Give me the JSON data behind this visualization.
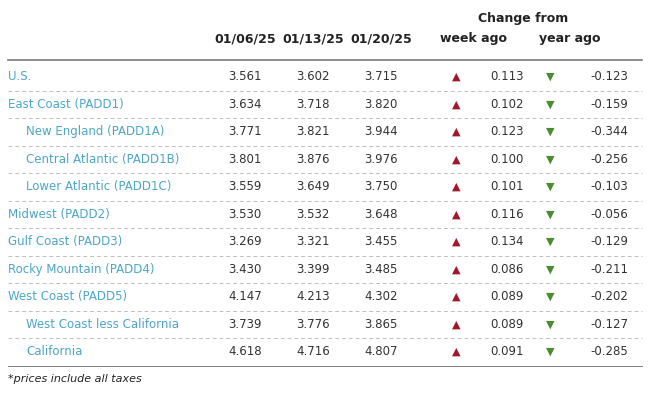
{
  "title_change_from": "Change from",
  "col_headers": [
    "01/06/25",
    "01/13/25",
    "01/20/25",
    "week ago",
    "year ago"
  ],
  "footnote": "*prices include all taxes",
  "rows": [
    {
      "label": "U.S.",
      "indent": 0,
      "v1": "3.561",
      "v2": "3.602",
      "v3": "3.715",
      "w_val": "0.113",
      "y_val": "-0.123"
    },
    {
      "label": "East Coast (PADD1)",
      "indent": 0,
      "v1": "3.634",
      "v2": "3.718",
      "v3": "3.820",
      "w_val": "0.102",
      "y_val": "-0.159"
    },
    {
      "label": "New England (PADD1A)",
      "indent": 1,
      "v1": "3.771",
      "v2": "3.821",
      "v3": "3.944",
      "w_val": "0.123",
      "y_val": "-0.344"
    },
    {
      "label": "Central Atlantic (PADD1B)",
      "indent": 1,
      "v1": "3.801",
      "v2": "3.876",
      "v3": "3.976",
      "w_val": "0.100",
      "y_val": "-0.256"
    },
    {
      "label": "Lower Atlantic (PADD1C)",
      "indent": 1,
      "v1": "3.559",
      "v2": "3.649",
      "v3": "3.750",
      "w_val": "0.101",
      "y_val": "-0.103"
    },
    {
      "label": "Midwest (PADD2)",
      "indent": 0,
      "v1": "3.530",
      "v2": "3.532",
      "v3": "3.648",
      "w_val": "0.116",
      "y_val": "-0.056"
    },
    {
      "label": "Gulf Coast (PADD3)",
      "indent": 0,
      "v1": "3.269",
      "v2": "3.321",
      "v3": "3.455",
      "w_val": "0.134",
      "y_val": "-0.129"
    },
    {
      "label": "Rocky Mountain (PADD4)",
      "indent": 0,
      "v1": "3.430",
      "v2": "3.399",
      "v3": "3.485",
      "w_val": "0.086",
      "y_val": "-0.211"
    },
    {
      "label": "West Coast (PADD5)",
      "indent": 0,
      "v1": "4.147",
      "v2": "4.213",
      "v3": "4.302",
      "w_val": "0.089",
      "y_val": "-0.202"
    },
    {
      "label": "West Coast less California",
      "indent": 1,
      "v1": "3.739",
      "v2": "3.776",
      "v3": "3.865",
      "w_val": "0.089",
      "y_val": "-0.127"
    },
    {
      "label": "California",
      "indent": 1,
      "v1": "4.618",
      "v2": "4.716",
      "v3": "4.807",
      "w_val": "0.091",
      "y_val": "-0.285"
    }
  ],
  "label_color": "#4da6c8",
  "up_arrow_color": "#a0182a",
  "down_arrow_color": "#4a8c30",
  "header_color": "#222222",
  "data_color": "#333333",
  "line_color_dash": "#c0c0c0",
  "line_color_solid": "#7a7a7a",
  "bg_color": "#ffffff"
}
